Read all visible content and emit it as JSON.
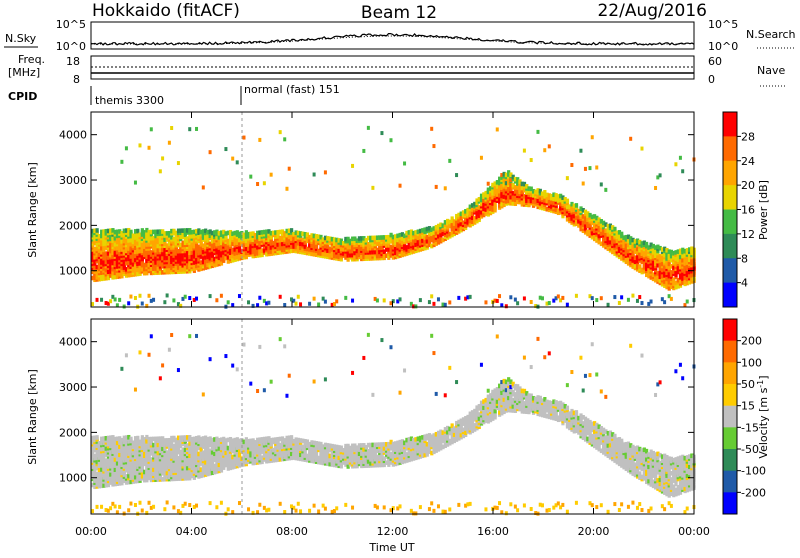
{
  "header": {
    "station": "Hokkaido (fitACF)",
    "beam": "Beam 12",
    "date": "22/Aug/2016"
  },
  "noise_panel": {
    "left_label": "N.Sky",
    "left_ticks": [
      "10^5",
      "10^0"
    ],
    "right_ticks": [
      "10^5",
      "10^0"
    ],
    "right_label": "N.Search"
  },
  "freq_panel": {
    "left_label_1": "Freq.",
    "left_label_2": "[MHz]",
    "left_ticks": [
      "18",
      "8"
    ],
    "right_ticks": [
      "60",
      "0"
    ],
    "right_label": "Nave"
  },
  "cpid": {
    "label": "CPID",
    "modes": [
      {
        "name": "themis 3300",
        "start_hour": 0
      },
      {
        "name": "normal (fast) 151",
        "start_hour": 6
      }
    ]
  },
  "time_axis": {
    "label": "Time UT",
    "ticks": [
      "00:00",
      "04:00",
      "08:00",
      "12:00",
      "16:00",
      "20:00",
      "00:00"
    ],
    "xlim_hours": [
      0,
      24
    ]
  },
  "chart_data": [
    {
      "type": "heatmap",
      "name": "power",
      "ylabel": "Slant Range [km]",
      "ylim": [
        200,
        4500
      ],
      "yticks": [
        "1000",
        "2000",
        "3000",
        "4000"
      ],
      "colorbar_label": "Power [dB]",
      "colorbar_ticks": [
        "28",
        "24",
        "20",
        "16",
        "12",
        "8",
        "4"
      ],
      "colors": [
        "#0000ff",
        "#1f5aa8",
        "#2e8b57",
        "#44bb44",
        "#e8d400",
        "#ffa500",
        "#ff6a00",
        "#ff0000"
      ],
      "echo_bands": [
        {
          "description": "main band",
          "t": [
            0,
            2,
            4,
            6,
            8,
            10,
            12,
            13.5,
            15,
            16.5,
            17.5,
            18.5,
            20,
            21.5,
            23,
            24
          ],
          "range_low": [
            800,
            950,
            1000,
            1300,
            1450,
            1250,
            1300,
            1550,
            2000,
            2500,
            2450,
            2300,
            1700,
            1100,
            600,
            800
          ],
          "range_high": [
            1900,
            1900,
            1900,
            1850,
            1900,
            1700,
            1800,
            1950,
            2400,
            3200,
            2800,
            2700,
            2200,
            1700,
            1450,
            1500
          ],
          "power_db": 18
        }
      ]
    },
    {
      "type": "heatmap",
      "name": "velocity",
      "ylabel": "Slant Range [km]",
      "ylim": [
        200,
        4500
      ],
      "yticks": [
        "1000",
        "2000",
        "3000",
        "4000"
      ],
      "colorbar_label": "Velocity [m s-1]",
      "colorbar_ticks": [
        "200",
        "100",
        "50",
        "15",
        "-15",
        "-50",
        "-100",
        "-200"
      ],
      "colors": [
        "#0000ff",
        "#1f5aa8",
        "#2e8b57",
        "#66cc33",
        "#c0c0c0",
        "#ffcc00",
        "#ffa500",
        "#ff6a00",
        "#ff0000"
      ]
    }
  ]
}
